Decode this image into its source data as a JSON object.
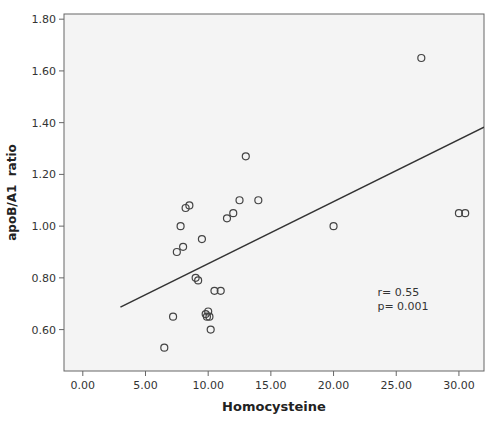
{
  "chart_data": {
    "type": "scatter",
    "xlabel": "Homocysteine",
    "ylabel": "apoB/A1  ratio",
    "series": [
      {
        "type": "scatter",
        "color": "#444444",
        "marker": "open-circle",
        "x": [
          6.5,
          7.2,
          7.5,
          7.8,
          8.0,
          8.2,
          8.5,
          9.0,
          9.2,
          9.5,
          9.8,
          9.9,
          10.0,
          10.1,
          10.2,
          10.5,
          11.0,
          11.5,
          12.0,
          12.5,
          13.0,
          14.0,
          20.0,
          27.0,
          30.0,
          30.5
        ],
        "values": [
          0.53,
          0.65,
          0.9,
          1.0,
          0.92,
          1.07,
          1.08,
          0.8,
          0.79,
          0.95,
          0.66,
          0.65,
          0.67,
          0.65,
          0.6,
          0.75,
          0.75,
          1.03,
          1.05,
          1.1,
          1.27,
          1.1,
          1.0,
          1.65,
          1.05,
          1.05
        ]
      },
      {
        "type": "line",
        "color": "#333333",
        "x": [
          3.0,
          32.0
        ],
        "values": [
          0.687,
          1.383
        ]
      }
    ],
    "xlim": [
      -1.5,
      32.0
    ],
    "ylim": [
      0.44,
      1.82
    ],
    "xticks": [
      {
        "value": 0,
        "label": "0.00"
      },
      {
        "value": 5,
        "label": "5.00"
      },
      {
        "value": 10,
        "label": "10.00"
      },
      {
        "value": 15,
        "label": "15.00"
      },
      {
        "value": 20,
        "label": "20.00"
      },
      {
        "value": 25,
        "label": "25.00"
      },
      {
        "value": 30,
        "label": "30.00"
      }
    ],
    "yticks": [
      {
        "value": 0.6,
        "label": "0.60"
      },
      {
        "value": 0.8,
        "label": "0.80"
      },
      {
        "value": 1.0,
        "label": "1.00"
      },
      {
        "value": 1.2,
        "label": "1.20"
      },
      {
        "value": 1.4,
        "label": "1.40"
      },
      {
        "value": 1.6,
        "label": "1.60"
      },
      {
        "value": 1.8,
        "label": "1.80"
      }
    ],
    "annotations": [
      {
        "text": "r= 0.55\np= 0.001",
        "x": 23.5,
        "y": 0.66
      }
    ],
    "grid": false
  }
}
